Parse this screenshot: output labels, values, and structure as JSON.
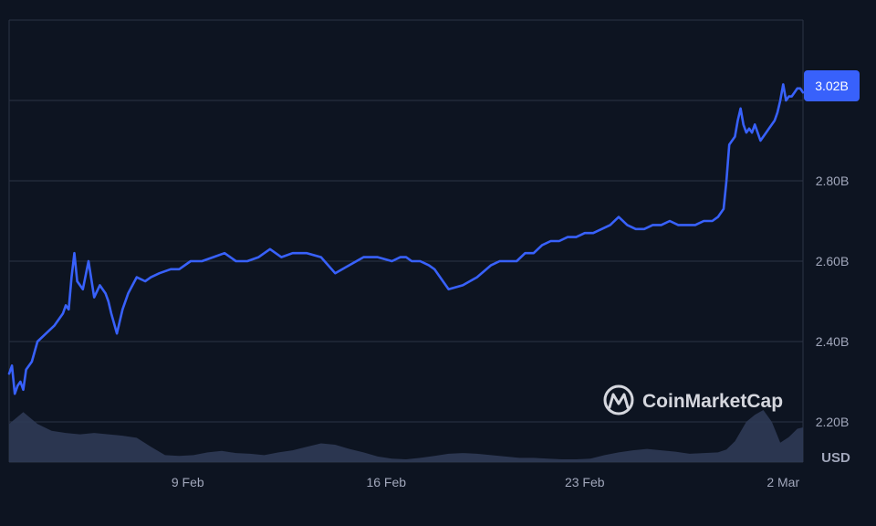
{
  "chart_data": {
    "type": "line",
    "x_ticks": [
      "9 Feb",
      "16 Feb",
      "23 Feb",
      "2 Mar"
    ],
    "y_ticks": [
      "2.20B",
      "2.40B",
      "2.60B",
      "2.80B"
    ],
    "ylim": [
      2.1,
      3.2
    ],
    "unit": "USD",
    "current_value_label": "3.02B",
    "grid": true,
    "x_days_range": [
      0,
      28
    ],
    "series": [
      {
        "values_x_days": [
          0,
          0.1,
          0.2,
          0.3,
          0.4,
          0.5,
          0.6,
          0.8,
          1.0,
          1.3,
          1.6,
          1.9,
          2.0,
          2.1,
          2.2,
          2.3,
          2.4,
          2.6,
          2.8,
          3.0,
          3.2,
          3.4,
          3.5,
          3.6,
          3.8,
          4.0,
          4.2,
          4.5,
          4.8,
          5.0,
          5.3,
          5.7,
          6.0,
          6.4,
          6.8,
          7.2,
          7.6,
          8.0,
          8.4,
          8.8,
          9.2,
          9.6,
          10.0,
          10.5,
          11.0,
          11.5,
          12.0,
          12.5,
          13.0,
          13.5,
          13.8,
          14.0,
          14.2,
          14.5,
          14.8,
          15.0,
          15.5,
          16.0,
          16.5,
          17.0,
          17.3,
          17.6,
          17.9,
          18.2,
          18.5,
          18.8,
          19.1,
          19.4,
          19.7,
          20.0,
          20.3,
          20.6,
          20.9,
          21.2,
          21.5,
          21.8,
          22.1,
          22.4,
          22.7,
          23.0,
          23.3,
          23.6,
          23.9,
          24.2,
          24.5,
          24.8,
          25.0,
          25.2,
          25.3,
          25.4,
          25.5,
          25.6,
          25.7,
          25.8,
          25.9,
          26.0,
          26.1,
          26.2,
          26.3,
          26.4,
          26.5,
          26.6,
          26.7,
          26.8,
          26.9,
          27.0,
          27.1,
          27.2,
          27.3,
          27.4,
          27.5,
          27.6,
          27.7,
          27.8,
          27.9,
          28.0
        ],
        "values": [
          2.32,
          2.34,
          2.27,
          2.29,
          2.3,
          2.28,
          2.33,
          2.35,
          2.4,
          2.42,
          2.44,
          2.47,
          2.49,
          2.48,
          2.56,
          2.62,
          2.55,
          2.53,
          2.6,
          2.51,
          2.54,
          2.52,
          2.5,
          2.47,
          2.42,
          2.48,
          2.52,
          2.56,
          2.55,
          2.56,
          2.57,
          2.58,
          2.58,
          2.6,
          2.6,
          2.61,
          2.62,
          2.6,
          2.6,
          2.61,
          2.63,
          2.61,
          2.62,
          2.62,
          2.61,
          2.57,
          2.59,
          2.61,
          2.61,
          2.6,
          2.61,
          2.61,
          2.6,
          2.6,
          2.59,
          2.58,
          2.53,
          2.54,
          2.56,
          2.59,
          2.6,
          2.6,
          2.6,
          2.62,
          2.62,
          2.64,
          2.65,
          2.65,
          2.66,
          2.66,
          2.67,
          2.67,
          2.68,
          2.69,
          2.71,
          2.69,
          2.68,
          2.68,
          2.69,
          2.69,
          2.7,
          2.69,
          2.69,
          2.69,
          2.7,
          2.7,
          2.71,
          2.73,
          2.8,
          2.89,
          2.9,
          2.91,
          2.95,
          2.98,
          2.94,
          2.92,
          2.93,
          2.92,
          2.94,
          2.92,
          2.9,
          2.91,
          2.92,
          2.93,
          2.94,
          2.95,
          2.97,
          3.0,
          3.04,
          3.0,
          3.01,
          3.01,
          3.02,
          3.03,
          3.03,
          3.02
        ]
      }
    ],
    "volume": {
      "values_x_days": [
        0,
        0.5,
        1.0,
        1.5,
        2.0,
        2.5,
        3.0,
        3.5,
        4.0,
        4.5,
        5.0,
        5.5,
        6.0,
        6.5,
        7.0,
        7.5,
        8.0,
        8.5,
        9.0,
        9.5,
        10.0,
        10.5,
        11.0,
        11.5,
        12.0,
        12.5,
        13.0,
        13.5,
        14.0,
        14.5,
        15.0,
        15.5,
        16.0,
        16.5,
        17.0,
        17.5,
        18.0,
        18.5,
        19.0,
        19.5,
        20.0,
        20.5,
        21.0,
        21.5,
        22.0,
        22.5,
        23.0,
        23.5,
        24.0,
        24.5,
        25.0,
        25.3,
        25.6,
        26.0,
        26.3,
        26.6,
        26.9,
        27.2,
        27.5,
        27.8,
        28.0
      ],
      "values": [
        0.55,
        0.72,
        0.55,
        0.45,
        0.42,
        0.4,
        0.42,
        0.4,
        0.38,
        0.35,
        0.22,
        0.1,
        0.09,
        0.1,
        0.14,
        0.16,
        0.13,
        0.12,
        0.1,
        0.14,
        0.17,
        0.22,
        0.27,
        0.25,
        0.19,
        0.14,
        0.08,
        0.05,
        0.04,
        0.06,
        0.09,
        0.12,
        0.13,
        0.12,
        0.1,
        0.08,
        0.06,
        0.06,
        0.05,
        0.04,
        0.04,
        0.05,
        0.1,
        0.14,
        0.17,
        0.19,
        0.17,
        0.15,
        0.12,
        0.13,
        0.14,
        0.18,
        0.3,
        0.58,
        0.68,
        0.75,
        0.58,
        0.28,
        0.36,
        0.48,
        0.5
      ]
    },
    "colors": {
      "background": "#0d1421",
      "line": "#3861fb",
      "grid": "#2b3345",
      "volume_fill": "#2f3a55",
      "badge": "#3861fb"
    }
  },
  "watermark": {
    "brand": "CoinMarketCap"
  }
}
